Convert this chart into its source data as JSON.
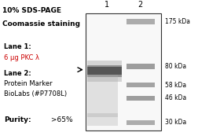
{
  "title_line1": "10% SDS-PAGE",
  "title_line2": "Coomassie staining",
  "lane1_label": "Lane 1",
  "lane1_desc": "6 μg PKC λ",
  "lane2_label": "Lane 2",
  "lane2_desc1": "Protein Marker",
  "lane2_desc2": "BioLabs (#P7708L)",
  "purity_label": "Purity",
  "purity_value": ">65%",
  "col_labels": [
    "1",
    "2"
  ],
  "marker_bands_kda": [
    175,
    80,
    58,
    46,
    30
  ],
  "marker_labels": [
    "175 kDa",
    "80 kDa",
    "58 kDa",
    "46 kDa",
    "30 kDa"
  ],
  "arrow_color": "#000000",
  "text_color": "#000000",
  "highlight_color": "#cc0000",
  "bg_color": "#ffffff"
}
